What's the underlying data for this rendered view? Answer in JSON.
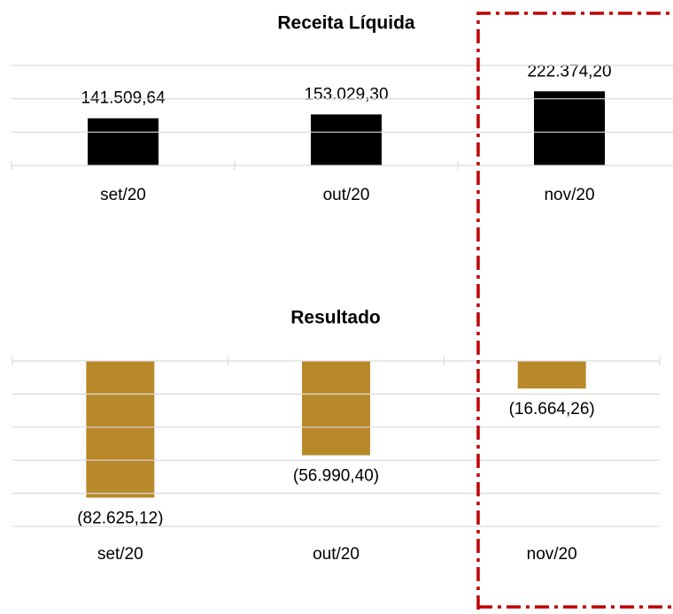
{
  "chart_data": [
    {
      "type": "bar",
      "title": "Receita Líquida",
      "categories": [
        "set/20",
        "out/20",
        "nov/20"
      ],
      "values": [
        141509.64,
        153029.3,
        222374.2
      ],
      "value_labels": [
        "141.509,64",
        "153.029,30",
        "222.374,20"
      ],
      "color": "#000000",
      "ylim": [
        0,
        300000
      ],
      "yticks": [
        0,
        100000,
        200000,
        300000
      ],
      "grid": true
    },
    {
      "type": "bar",
      "title": "Resultado",
      "categories": [
        "set/20",
        "out/20",
        "nov/20"
      ],
      "values": [
        -82625.12,
        -56990.4,
        -16664.26
      ],
      "value_labels": [
        "(82.625,12)",
        "(56.990,40)",
        "(16.664,26)"
      ],
      "color": "#b8892a",
      "ylim": [
        -100000,
        0
      ],
      "yticks": [
        0,
        -20000,
        -40000,
        -60000,
        -80000,
        -100000
      ],
      "grid": true
    }
  ]
}
